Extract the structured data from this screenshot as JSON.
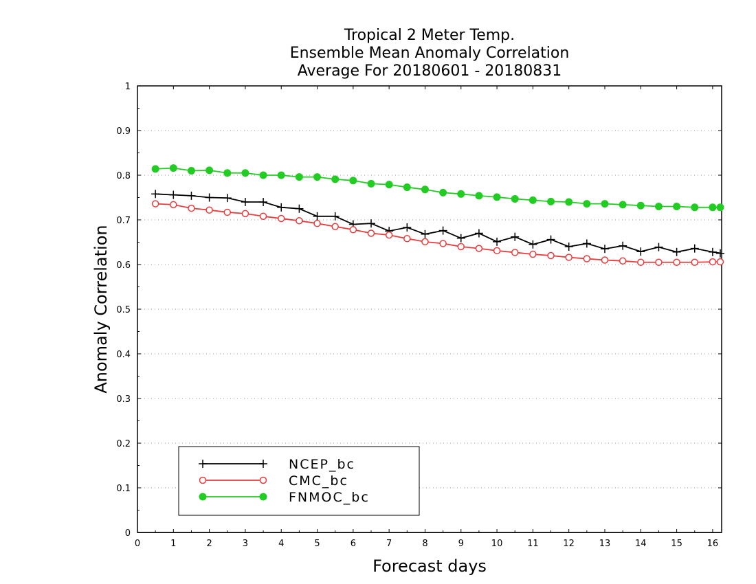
{
  "chart_data": {
    "type": "line",
    "title_lines": [
      "Tropical 2 Meter Temp.",
      "Ensemble Mean Anomaly Correlation",
      "Average For 20180601 - 20180831"
    ],
    "xlabel": "Forecast days",
    "ylabel": "Anomaly Correlation",
    "xlim": [
      0,
      16.25
    ],
    "ylim": [
      0,
      1
    ],
    "x_ticks": [
      0,
      1,
      2,
      3,
      4,
      5,
      6,
      7,
      8,
      9,
      10,
      11,
      12,
      13,
      14,
      15,
      16
    ],
    "x_tick_labels": [
      "0",
      "1",
      "2",
      "3",
      "4",
      "5",
      "6",
      "7",
      "8",
      "9",
      "10",
      "11",
      "12",
      "13",
      "14",
      "15",
      "16"
    ],
    "y_ticks": [
      0,
      0.1,
      0.2,
      0.3,
      0.4,
      0.5,
      0.6,
      0.7,
      0.8,
      0.9,
      1
    ],
    "y_tick_labels": [
      "0",
      "0.1",
      "0.2",
      "0.3",
      "0.4",
      "0.5",
      "0.6",
      "0.7",
      "0.8",
      "0.9",
      "1"
    ],
    "grid": true,
    "legend_position": "bottom-left",
    "x": [
      0.5,
      1,
      1.5,
      2,
      2.5,
      3,
      3.5,
      4,
      4.5,
      5,
      5.5,
      6,
      6.5,
      7,
      7.5,
      8,
      8.5,
      9,
      9.5,
      10,
      10.5,
      11,
      11.5,
      12,
      12.5,
      13,
      13.5,
      14,
      14.5,
      15,
      15.5,
      16,
      16.25
    ],
    "series": [
      {
        "name": "NCEP_bc",
        "color": "#000000",
        "marker": "plus",
        "values": [
          0.758,
          0.756,
          0.754,
          0.75,
          0.749,
          0.74,
          0.74,
          0.728,
          0.725,
          0.708,
          0.708,
          0.69,
          0.692,
          0.675,
          0.683,
          0.668,
          0.676,
          0.659,
          0.67,
          0.651,
          0.662,
          0.645,
          0.656,
          0.64,
          0.647,
          0.635,
          0.642,
          0.629,
          0.639,
          0.628,
          0.636,
          0.628,
          0.625
        ]
      },
      {
        "name": "CMC_bc",
        "color": "#e83c3c",
        "marker": "open-circle",
        "values": [
          0.736,
          0.734,
          0.726,
          0.722,
          0.717,
          0.714,
          0.708,
          0.703,
          0.698,
          0.692,
          0.685,
          0.678,
          0.67,
          0.666,
          0.658,
          0.651,
          0.647,
          0.64,
          0.636,
          0.631,
          0.627,
          0.623,
          0.62,
          0.616,
          0.613,
          0.61,
          0.608,
          0.605,
          0.605,
          0.605,
          0.605,
          0.606,
          0.606
        ]
      },
      {
        "name": "FNMOC_bc",
        "color": "#22cc22",
        "marker": "filled-circle",
        "values": [
          0.814,
          0.816,
          0.81,
          0.811,
          0.805,
          0.805,
          0.8,
          0.8,
          0.796,
          0.796,
          0.791,
          0.788,
          0.781,
          0.779,
          0.773,
          0.768,
          0.761,
          0.758,
          0.754,
          0.751,
          0.747,
          0.744,
          0.741,
          0.74,
          0.736,
          0.736,
          0.734,
          0.732,
          0.73,
          0.73,
          0.728,
          0.728,
          0.728
        ]
      }
    ]
  }
}
